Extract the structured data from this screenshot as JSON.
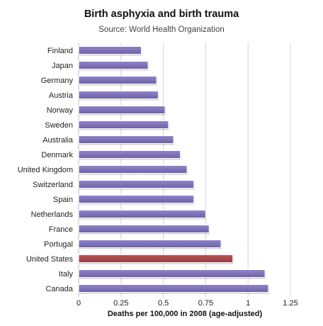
{
  "chart_data": {
    "type": "bar",
    "orientation": "horizontal",
    "title": "Birth asphyxia and birth trauma",
    "subtitle": "Source: World Health Organization",
    "xlabel": "Deaths per 100,000 in 2008 (age-adjusted)",
    "ylabel": "",
    "xlim": [
      0,
      1.25
    ],
    "xticks": [
      "0",
      "0.25",
      "0.5",
      "0.75",
      "1",
      "1.25"
    ],
    "grid": true,
    "legend": "none",
    "categories": [
      "Finland",
      "Japan",
      "Germany",
      "Austria",
      "Norway",
      "Sweden",
      "Australia",
      "Denmark",
      "United Kingdom",
      "Switzerland",
      "Spain",
      "Netherlands",
      "France",
      "Portugal",
      "United States",
      "Italy",
      "Canada"
    ],
    "values": [
      0.37,
      0.41,
      0.46,
      0.47,
      0.51,
      0.53,
      0.56,
      0.6,
      0.64,
      0.68,
      0.68,
      0.75,
      0.77,
      0.84,
      0.91,
      1.1,
      1.12
    ],
    "colors": {
      "default_bar": "#7e70b8",
      "highlight_bar": "#a8484d",
      "gridline": "#d4d4d4"
    },
    "highlight_category": "United States"
  }
}
